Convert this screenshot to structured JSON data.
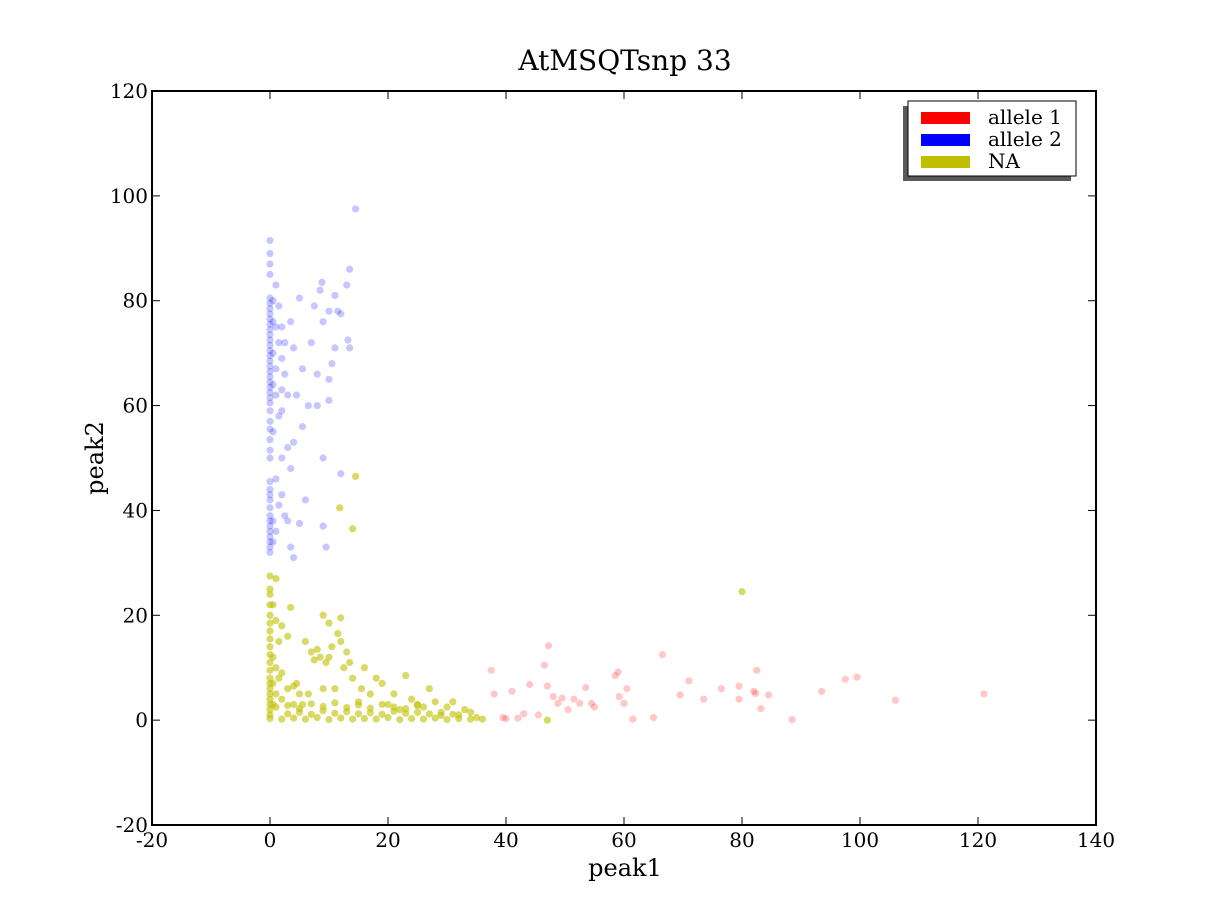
{
  "chart_data": {
    "type": "scatter",
    "title": "AtMSQTsnp 33",
    "xlabel": "peak1",
    "ylabel": "peak2",
    "xlim": [
      -20,
      140
    ],
    "ylim": [
      -20,
      120
    ],
    "xticks": [
      -20,
      0,
      20,
      40,
      60,
      80,
      100,
      120,
      140
    ],
    "yticks": [
      -20,
      0,
      20,
      40,
      60,
      80,
      100,
      120
    ],
    "xtick_labels": [
      "-20",
      "0",
      "20",
      "40",
      "60",
      "80",
      "100",
      "120",
      "140"
    ],
    "ytick_labels": [
      "-20",
      "0",
      "20",
      "40",
      "60",
      "80",
      "100",
      "120"
    ],
    "legend_position": "top-right",
    "series": [
      {
        "name": "allele 1",
        "color": "#ff0000",
        "points": [
          [
            37.5,
            9.5
          ],
          [
            38,
            5
          ],
          [
            39.5,
            0.5
          ],
          [
            40,
            0.3
          ],
          [
            41,
            5.5
          ],
          [
            42,
            0.4
          ],
          [
            43,
            1.2
          ],
          [
            44,
            6.8
          ],
          [
            45.5,
            1
          ],
          [
            46.5,
            10.5
          ],
          [
            47,
            6.5
          ],
          [
            47.2,
            14.2
          ],
          [
            48,
            4.5
          ],
          [
            48.8,
            3.2
          ],
          [
            49.5,
            4.2
          ],
          [
            50.5,
            2
          ],
          [
            51.5,
            4
          ],
          [
            52.5,
            3.2
          ],
          [
            53.5,
            6.2
          ],
          [
            54.5,
            3.2
          ],
          [
            55,
            2.5
          ],
          [
            58.5,
            8.5
          ],
          [
            59,
            9.2
          ],
          [
            59.2,
            4.5
          ],
          [
            60,
            3.2
          ],
          [
            60.5,
            6
          ],
          [
            61.5,
            0.2
          ],
          [
            65,
            0.5
          ],
          [
            66.5,
            12.5
          ],
          [
            69.5,
            4.8
          ],
          [
            71,
            7.5
          ],
          [
            73.5,
            4
          ],
          [
            76.5,
            6
          ],
          [
            79.5,
            6.5
          ],
          [
            79.5,
            4
          ],
          [
            82,
            5.5
          ],
          [
            82.3,
            5.1
          ],
          [
            82.5,
            9.5
          ],
          [
            83.2,
            2.2
          ],
          [
            84.5,
            4.8
          ],
          [
            88.5,
            0.1
          ],
          [
            93.5,
            5.5
          ],
          [
            97.5,
            7.8
          ],
          [
            99.5,
            8.2
          ],
          [
            106,
            3.8
          ],
          [
            121,
            5
          ]
        ]
      },
      {
        "name": "allele 2",
        "color": "#0000ff",
        "points": [
          [
            0,
            91.5
          ],
          [
            0,
            89
          ],
          [
            0,
            87
          ],
          [
            0,
            85
          ],
          [
            0,
            80.5
          ],
          [
            0,
            79.5
          ],
          [
            0,
            78.5
          ],
          [
            0,
            77.5
          ],
          [
            0,
            76.5
          ],
          [
            0,
            75.5
          ],
          [
            0,
            74.5
          ],
          [
            0,
            73.5
          ],
          [
            0,
            72.5
          ],
          [
            0,
            71.5
          ],
          [
            0,
            70.5
          ],
          [
            0,
            69.5
          ],
          [
            0,
            68.5
          ],
          [
            0,
            67.5
          ],
          [
            0,
            66.5
          ],
          [
            0,
            65.5
          ],
          [
            0,
            64.5
          ],
          [
            0,
            63.5
          ],
          [
            0,
            62.5
          ],
          [
            0,
            61.5
          ],
          [
            0,
            60.5
          ],
          [
            0,
            59
          ],
          [
            0,
            57
          ],
          [
            0,
            55.5
          ],
          [
            0,
            53.5
          ],
          [
            0,
            51.5
          ],
          [
            0,
            50
          ],
          [
            0,
            45.5
          ],
          [
            0,
            44
          ],
          [
            0,
            43
          ],
          [
            0,
            42
          ],
          [
            0,
            40.5
          ],
          [
            0,
            39
          ],
          [
            0,
            38
          ],
          [
            0,
            37
          ],
          [
            0,
            36
          ],
          [
            0,
            35
          ],
          [
            0,
            34
          ],
          [
            0,
            33
          ],
          [
            0,
            32
          ],
          [
            0.5,
            80
          ],
          [
            0.5,
            76
          ],
          [
            0.5,
            70
          ],
          [
            0.5,
            64
          ],
          [
            0.5,
            55
          ],
          [
            0.5,
            38
          ],
          [
            0.5,
            34
          ],
          [
            1,
            83
          ],
          [
            1,
            75
          ],
          [
            1,
            67
          ],
          [
            1,
            62
          ],
          [
            1,
            46
          ],
          [
            1,
            36
          ],
          [
            1.5,
            79
          ],
          [
            1.5,
            72
          ],
          [
            1.5,
            58
          ],
          [
            1.5,
            41
          ],
          [
            2,
            75
          ],
          [
            2,
            69
          ],
          [
            2,
            63
          ],
          [
            2,
            59
          ],
          [
            2,
            50
          ],
          [
            2,
            43
          ],
          [
            2.5,
            72
          ],
          [
            2.5,
            66
          ],
          [
            2.5,
            39
          ],
          [
            3,
            62
          ],
          [
            3,
            52
          ],
          [
            3,
            38
          ],
          [
            3.5,
            76
          ],
          [
            3.5,
            48
          ],
          [
            3.5,
            33
          ],
          [
            4,
            71
          ],
          [
            4,
            53
          ],
          [
            4,
            31
          ],
          [
            4.5,
            62
          ],
          [
            5,
            80.5
          ],
          [
            5,
            37.5
          ],
          [
            5.5,
            67
          ],
          [
            5.5,
            56
          ],
          [
            6,
            42
          ],
          [
            6.5,
            60
          ],
          [
            7,
            72
          ],
          [
            7.5,
            79
          ],
          [
            8,
            66
          ],
          [
            8,
            60
          ],
          [
            8.5,
            82
          ],
          [
            8.8,
            83.5
          ],
          [
            9,
            76
          ],
          [
            9,
            50
          ],
          [
            9,
            37
          ],
          [
            9.5,
            33
          ],
          [
            10,
            78
          ],
          [
            10,
            61
          ],
          [
            10,
            65
          ],
          [
            10.5,
            68
          ],
          [
            11,
            81
          ],
          [
            11,
            71
          ],
          [
            11.5,
            78
          ],
          [
            12,
            77.5
          ],
          [
            12,
            47
          ],
          [
            13,
            83
          ],
          [
            13.2,
            72.5
          ],
          [
            13.5,
            86
          ],
          [
            13.5,
            71
          ],
          [
            14.5,
            97.5
          ]
        ]
      },
      {
        "name": "NA",
        "color": "#bfbf00",
        "points": [
          [
            0,
            27.5
          ],
          [
            0,
            25
          ],
          [
            0,
            24
          ],
          [
            0,
            22
          ],
          [
            0,
            20
          ],
          [
            0,
            18.5
          ],
          [
            0,
            17
          ],
          [
            0,
            15.5
          ],
          [
            0,
            14
          ],
          [
            0,
            12.5
          ],
          [
            0,
            11
          ],
          [
            0,
            9.5
          ],
          [
            0,
            8
          ],
          [
            0,
            7
          ],
          [
            0,
            6
          ],
          [
            0,
            5
          ],
          [
            0,
            4
          ],
          [
            0,
            3
          ],
          [
            0,
            2
          ],
          [
            0,
            1
          ],
          [
            0,
            0.3
          ],
          [
            0.5,
            22
          ],
          [
            0.5,
            12
          ],
          [
            0.5,
            7
          ],
          [
            0.5,
            3
          ],
          [
            1,
            27
          ],
          [
            1,
            19
          ],
          [
            1,
            10
          ],
          [
            1,
            5
          ],
          [
            1.5,
            15
          ],
          [
            1.5,
            8
          ],
          [
            2,
            18
          ],
          [
            2,
            9
          ],
          [
            2,
            4
          ],
          [
            3,
            16
          ],
          [
            3,
            6
          ],
          [
            3.5,
            21.5
          ],
          [
            4,
            6.5
          ],
          [
            4,
            3
          ],
          [
            4.5,
            7
          ],
          [
            5,
            5
          ],
          [
            5.5,
            3
          ],
          [
            6,
            15
          ],
          [
            6.5,
            5
          ],
          [
            7,
            13
          ],
          [
            7.5,
            11.5
          ],
          [
            8,
            13.5
          ],
          [
            8.5,
            12
          ],
          [
            9,
            20
          ],
          [
            9,
            6
          ],
          [
            9.5,
            11
          ],
          [
            10,
            18.5
          ],
          [
            10,
            12
          ],
          [
            10.5,
            14
          ],
          [
            11,
            6
          ],
          [
            11.5,
            16.5
          ],
          [
            11.8,
            40.5
          ],
          [
            12,
            19.5
          ],
          [
            12,
            15
          ],
          [
            12.5,
            10
          ],
          [
            13,
            13
          ],
          [
            13.5,
            11
          ],
          [
            14,
            36.5
          ],
          [
            14,
            8
          ],
          [
            14.5,
            46.5
          ],
          [
            15,
            3.5
          ],
          [
            15.5,
            6
          ],
          [
            16,
            10
          ],
          [
            17,
            5
          ],
          [
            18,
            8
          ],
          [
            19,
            7
          ],
          [
            20,
            3
          ],
          [
            21,
            5
          ],
          [
            22,
            2
          ],
          [
            23,
            8.5
          ],
          [
            24,
            4
          ],
          [
            25,
            3
          ],
          [
            26,
            2.5
          ],
          [
            27,
            6
          ],
          [
            28,
            3.5
          ],
          [
            29,
            1.5
          ],
          [
            30,
            2.5
          ],
          [
            31,
            3.5
          ],
          [
            32,
            1
          ],
          [
            33,
            2
          ],
          [
            34,
            1.5
          ],
          [
            35,
            0.5
          ],
          [
            36,
            0.2
          ],
          [
            47,
            0
          ],
          [
            80,
            24.5
          ],
          [
            2,
            0.2
          ],
          [
            4,
            0.4
          ],
          [
            6,
            0.2
          ],
          [
            8,
            0.5
          ],
          [
            10,
            0.1
          ],
          [
            12,
            0.4
          ],
          [
            14,
            0.2
          ],
          [
            16,
            0.3
          ],
          [
            18,
            0.2
          ],
          [
            20,
            0.5
          ],
          [
            22,
            0.1
          ],
          [
            24,
            0.3
          ],
          [
            26,
            0.2
          ],
          [
            28,
            0.4
          ],
          [
            30,
            0.1
          ],
          [
            32,
            0.3
          ],
          [
            34,
            0.2
          ],
          [
            3,
            1.2
          ],
          [
            5,
            1.5
          ],
          [
            7,
            1.1
          ],
          [
            9,
            1.8
          ],
          [
            11,
            1.3
          ],
          [
            13,
            1.6
          ],
          [
            15,
            1.2
          ],
          [
            17,
            1.4
          ],
          [
            19,
            1.1
          ],
          [
            21,
            1.7
          ],
          [
            23,
            1.3
          ],
          [
            25,
            1.5
          ],
          [
            27,
            1.2
          ],
          [
            29,
            0.9
          ],
          [
            31,
            1.1
          ],
          [
            1,
            2.5
          ],
          [
            3,
            2.8
          ],
          [
            5,
            2.2
          ],
          [
            7,
            3.1
          ],
          [
            9,
            2.6
          ],
          [
            11,
            3.3
          ],
          [
            13,
            2.4
          ],
          [
            15,
            2.9
          ],
          [
            17,
            2.3
          ],
          [
            19,
            3
          ],
          [
            21,
            2.5
          ],
          [
            23,
            2.2
          ],
          [
            25,
            2.8
          ]
        ]
      }
    ]
  }
}
